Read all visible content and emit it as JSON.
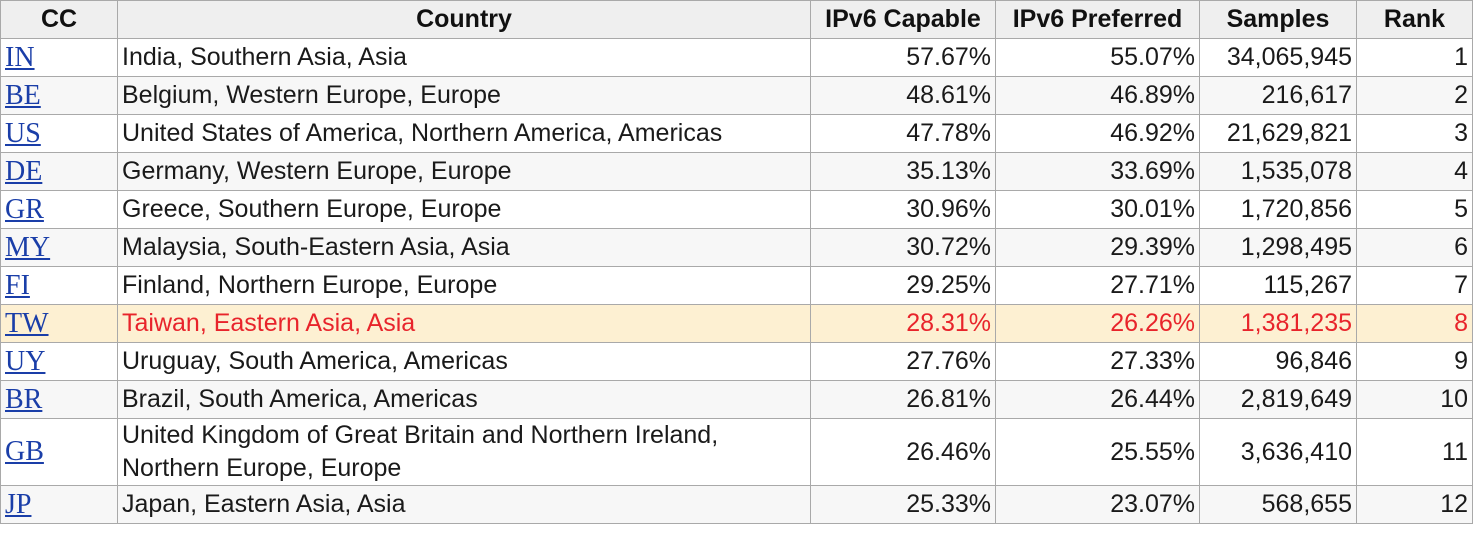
{
  "columns": {
    "cc": "CC",
    "country": "Country",
    "capable": "IPv6 Capable",
    "preferred": "IPv6 Preferred",
    "samples": "Samples",
    "rank": "Rank"
  },
  "highlight_row": 7,
  "colors": {
    "link": "#1a3ea8",
    "highlight_text": "#e8242b",
    "highlight_background": "#fdf0d2"
  },
  "rows": [
    {
      "cc": "IN",
      "country": "India, Southern Asia, Asia",
      "capable": "57.67%",
      "preferred": "55.07%",
      "samples": "34,065,945",
      "rank": "1"
    },
    {
      "cc": "BE",
      "country": "Belgium, Western Europe, Europe",
      "capable": "48.61%",
      "preferred": "46.89%",
      "samples": "216,617",
      "rank": "2"
    },
    {
      "cc": "US",
      "country": "United States of America, Northern America, Americas",
      "capable": "47.78%",
      "preferred": "46.92%",
      "samples": "21,629,821",
      "rank": "3"
    },
    {
      "cc": "DE",
      "country": "Germany, Western Europe, Europe",
      "capable": "35.13%",
      "preferred": "33.69%",
      "samples": "1,535,078",
      "rank": "4"
    },
    {
      "cc": "GR",
      "country": "Greece, Southern Europe, Europe",
      "capable": "30.96%",
      "preferred": "30.01%",
      "samples": "1,720,856",
      "rank": "5"
    },
    {
      "cc": "MY",
      "country": "Malaysia, South-Eastern Asia, Asia",
      "capable": "30.72%",
      "preferred": "29.39%",
      "samples": "1,298,495",
      "rank": "6"
    },
    {
      "cc": "FI",
      "country": "Finland, Northern Europe, Europe",
      "capable": "29.25%",
      "preferred": "27.71%",
      "samples": "115,267",
      "rank": "7"
    },
    {
      "cc": "TW",
      "country": "Taiwan, Eastern Asia, Asia",
      "capable": "28.31%",
      "preferred": "26.26%",
      "samples": "1,381,235",
      "rank": "8"
    },
    {
      "cc": "UY",
      "country": "Uruguay, South America, Americas",
      "capable": "27.76%",
      "preferred": "27.33%",
      "samples": "96,846",
      "rank": "9"
    },
    {
      "cc": "BR",
      "country": "Brazil, South America, Americas",
      "capable": "26.81%",
      "preferred": "26.44%",
      "samples": "2,819,649",
      "rank": "10"
    },
    {
      "cc": "GB",
      "country": "United Kingdom of Great Britain and Northern Ireland, Northern Europe, Europe",
      "capable": "26.46%",
      "preferred": "25.55%",
      "samples": "3,636,410",
      "rank": "11"
    },
    {
      "cc": "JP",
      "country": "Japan, Eastern Asia, Asia",
      "capable": "25.33%",
      "preferred": "23.07%",
      "samples": "568,655",
      "rank": "12"
    }
  ]
}
